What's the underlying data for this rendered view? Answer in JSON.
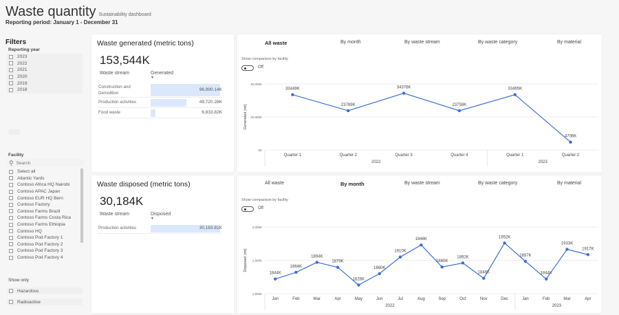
{
  "header": {
    "title": "Waste quantity",
    "subtitle": "Sustainability dashboard",
    "period": "Reporting period: January 1 - December 31"
  },
  "filters": {
    "title": "Filters",
    "reporting_year": {
      "label": "Reporting year",
      "options": [
        "2023",
        "2022",
        "2021",
        "2020",
        "2019",
        "2018"
      ]
    },
    "facility": {
      "label": "Facility",
      "search_placeholder": "Search",
      "options": [
        "Select all",
        "Atlantic Yards",
        "Contoso Africa HQ Nairobi",
        "Contoso APAC Japan",
        "Contoso EUR HQ Bern",
        "Contoso Factory",
        "Contoso Farms Brazil",
        "Contoso Farms Costa Rica",
        "Contoso Farms Ethiopia",
        "Contoso HQ",
        "Contoso Pod Factory 1",
        "Contoso Pod Factory 2",
        "Contoso Pod Factory 3",
        "Contoso Pod Factory 4"
      ]
    },
    "show_only": {
      "label": "Show only",
      "options": [
        "Hazardous",
        "Radioactive"
      ]
    }
  },
  "generated": {
    "title": "Waste generated (metric tons)",
    "kpi": "153,544K",
    "col1": "Waste stream",
    "col2": "Generated",
    "rows": [
      {
        "name": "Construction and Demolition",
        "value": "96,990.14K",
        "amount": 96990.14
      },
      {
        "name": "Production activities",
        "value": "49,720.28K",
        "amount": 49720.28
      },
      {
        "name": "Food waste",
        "value": "6,833.82K",
        "amount": 6833.82
      }
    ]
  },
  "disposed": {
    "title": "Waste disposed (metric tons)",
    "kpi": "30,184K",
    "col1": "Waste stream",
    "col2": "Disposed",
    "rows": [
      {
        "name": "Production activities",
        "value": "30,183.81K",
        "amount": 30183.81
      }
    ]
  },
  "tabs": [
    "All waste",
    "By month",
    "By waste stream",
    "By waste category",
    "By material"
  ],
  "comparison": {
    "label": "Show comparison by facility",
    "state": "Off"
  },
  "accent": "#3a6fd8",
  "chart_data": [
    {
      "type": "line",
      "ylabel": "Generated (mt)",
      "ylim": [
        0,
        40000
      ],
      "yticks": [
        "40,000K",
        "20,000K",
        "0K"
      ],
      "ytick_values": [
        40000,
        20000,
        0
      ],
      "categories": [
        "Quarter 1",
        "Quarter 2",
        "Quarter 3",
        "Quarter 4",
        "Quarter 1",
        "Quarter 2"
      ],
      "groups": [
        {
          "label": "2022",
          "count": 4
        },
        {
          "label": "2023",
          "count": 2
        }
      ],
      "values": [
        33449,
        23789,
        34376,
        23759,
        33465,
        4706
      ],
      "labels": [
        "33449K",
        "23789K",
        "34376K",
        "23759K",
        "33465K",
        "4706K"
      ],
      "active_tab": "All waste"
    },
    {
      "type": "line",
      "ylabel": "Disposed (mt)",
      "ylim": [
        1800,
        2000
      ],
      "yticks": [
        "2,000K",
        "1,900K",
        "1,800K"
      ],
      "ytick_values": [
        2000,
        1900,
        1800
      ],
      "categories": [
        "Jan",
        "Feb",
        "Mar",
        "Apr",
        "May",
        "Jun",
        "Jul",
        "Aug",
        "Sep",
        "Oct",
        "Nov",
        "Dec",
        "Jan",
        "Feb",
        "Mar",
        "Apr"
      ],
      "groups": [
        {
          "label": "2022",
          "count": 12
        },
        {
          "label": "2023",
          "count": 4
        }
      ],
      "values": [
        1844,
        1864,
        1894,
        1879,
        1826,
        1860,
        1910,
        1946,
        1880,
        1892,
        1846,
        1952,
        1897,
        1844,
        1933,
        1917
      ],
      "labels": [
        "1844K",
        "1864K",
        "1894K",
        "1879K",
        "1826K",
        "1860K",
        "1910K",
        "1946K",
        "1880K",
        "1892K",
        "1846K",
        "1952K",
        "1897K",
        "1844K",
        "1933K",
        "1917K"
      ],
      "active_tab": "By month"
    }
  ]
}
